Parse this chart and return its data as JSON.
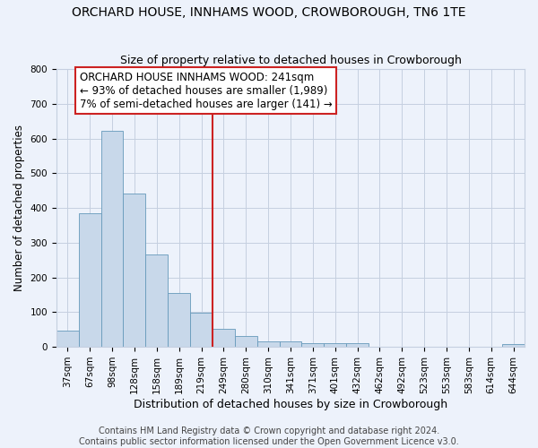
{
  "title": "ORCHARD HOUSE, INNHAMS WOOD, CROWBOROUGH, TN6 1TE",
  "subtitle": "Size of property relative to detached houses in Crowborough",
  "xlabel": "Distribution of detached houses by size in Crowborough",
  "ylabel": "Number of detached properties",
  "categories": [
    "37sqm",
    "67sqm",
    "98sqm",
    "128sqm",
    "158sqm",
    "189sqm",
    "219sqm",
    "249sqm",
    "280sqm",
    "310sqm",
    "341sqm",
    "371sqm",
    "401sqm",
    "432sqm",
    "462sqm",
    "492sqm",
    "523sqm",
    "553sqm",
    "583sqm",
    "614sqm",
    "644sqm"
  ],
  "values": [
    47,
    385,
    623,
    441,
    267,
    155,
    98,
    52,
    30,
    16,
    16,
    11,
    11,
    11,
    0,
    0,
    0,
    0,
    0,
    0,
    8
  ],
  "bar_color": "#c8d8ea",
  "bar_edge_color": "#6699bb",
  "grid_color": "#c5cfe0",
  "bg_color": "#edf2fb",
  "annotation_text_line1": "ORCHARD HOUSE INNHAMS WOOD: 241sqm",
  "annotation_text_line2": "← 93% of detached houses are smaller (1,989)",
  "annotation_text_line3": "7% of semi-detached houses are larger (141) →",
  "annotation_box_facecolor": "#ffffff",
  "annotation_box_edgecolor": "#cc2222",
  "vline_color": "#cc2222",
  "vline_x": 7,
  "ylim": [
    0,
    800
  ],
  "yticks": [
    0,
    100,
    200,
    300,
    400,
    500,
    600,
    700,
    800
  ],
  "footer_line1": "Contains HM Land Registry data © Crown copyright and database right 2024.",
  "footer_line2": "Contains public sector information licensed under the Open Government Licence v3.0.",
  "title_fontsize": 10,
  "subtitle_fontsize": 9,
  "ylabel_fontsize": 8.5,
  "xlabel_fontsize": 9,
  "tick_fontsize": 7.5,
  "footer_fontsize": 7,
  "annotation_fontsize": 8.5
}
